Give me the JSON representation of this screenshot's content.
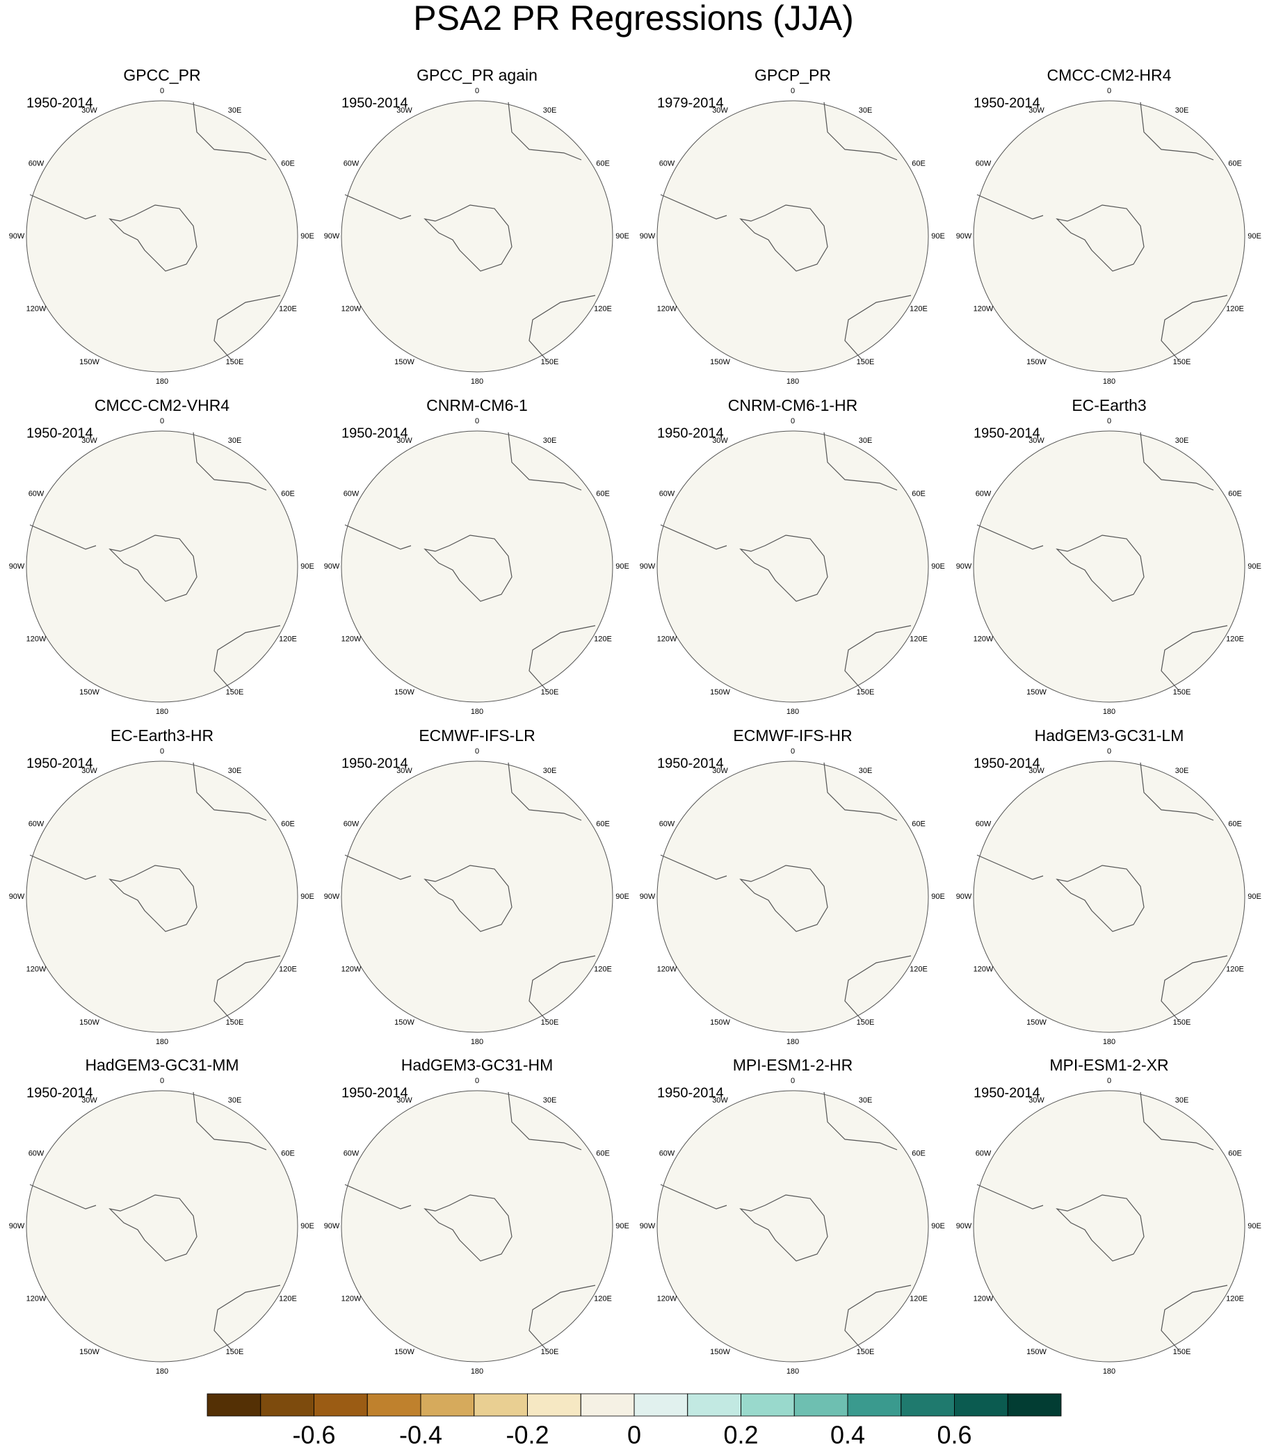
{
  "title": "PSA2 PR Regressions (JJA)",
  "lon_labels": [
    "0",
    "30E",
    "60E",
    "90E",
    "120E",
    "150E",
    "180",
    "150W",
    "120W",
    "90W",
    "60W",
    "30W"
  ],
  "panels": [
    {
      "title": "GPCC_PR",
      "period": "1950-2014"
    },
    {
      "title": "GPCC_PR again",
      "period": "1950-2014"
    },
    {
      "title": "GPCP_PR",
      "period": "1979-2014"
    },
    {
      "title": "CMCC-CM2-HR4",
      "period": "1950-2014"
    },
    {
      "title": "CMCC-CM2-VHR4",
      "period": "1950-2014"
    },
    {
      "title": "CNRM-CM6-1",
      "period": "1950-2014"
    },
    {
      "title": "CNRM-CM6-1-HR",
      "period": "1950-2014"
    },
    {
      "title": "EC-Earth3",
      "period": "1950-2014"
    },
    {
      "title": "EC-Earth3-HR",
      "period": "1950-2014"
    },
    {
      "title": "ECMWF-IFS-LR",
      "period": "1950-2014"
    },
    {
      "title": "ECMWF-IFS-HR",
      "period": "1950-2014"
    },
    {
      "title": "HadGEM3-GC31-LM",
      "period": "1950-2014"
    },
    {
      "title": "HadGEM3-GC31-MM",
      "period": "1950-2014"
    },
    {
      "title": "HadGEM3-GC31-HM",
      "period": "1950-2014"
    },
    {
      "title": "MPI-ESM1-2-HR",
      "period": "1950-2014"
    },
    {
      "title": "MPI-ESM1-2-XR",
      "period": "1950-2014"
    }
  ],
  "colorbar": {
    "levels": [
      -0.7,
      -0.6,
      -0.5,
      -0.4,
      -0.3,
      -0.2,
      -0.1,
      0,
      0.1,
      0.2,
      0.3,
      0.4,
      0.5,
      0.6,
      0.7
    ],
    "colors": [
      "#543005",
      "#7d4b0d",
      "#9b5c14",
      "#bf812d",
      "#d6aa5c",
      "#e9cf92",
      "#f6e8c3",
      "#f5f1e4",
      "#e1f1ee",
      "#c2e9e2",
      "#99d9cc",
      "#6ebfb1",
      "#3a9a8e",
      "#1f7a6e",
      "#0b5b50",
      "#023d33"
    ],
    "ticks": [
      -0.6,
      -0.4,
      -0.2,
      0,
      0.2,
      0.4,
      0.6
    ]
  }
}
